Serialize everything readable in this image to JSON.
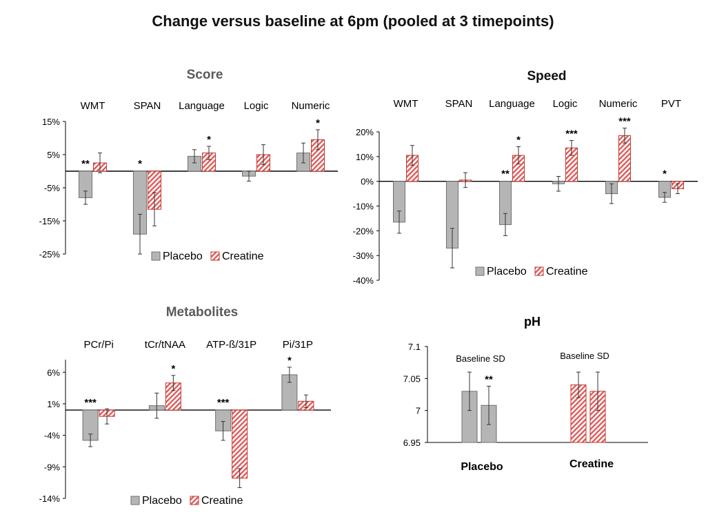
{
  "page_title": "Change versus baseline at 6pm  (pooled at 3 timepoints)",
  "colors": {
    "placebo_fill": "#b5b5b5",
    "placebo_stroke": "#6f6f6f",
    "creatine_stroke": "#c0392b",
    "creatine_hatch": "#e05a5a",
    "axis": "#000000",
    "error_bar": "#333333"
  },
  "chart_data": [
    {
      "type": "bar",
      "title": "Score",
      "categories": [
        "WMT",
        "SPAN",
        "Language",
        "Logic",
        "Numeric"
      ],
      "y_tick_labels": [
        "15%",
        "5%",
        "-5%",
        "-15%",
        "-25%"
      ],
      "ylim": [
        -25,
        15
      ],
      "series": [
        {
          "name": "Placebo",
          "values": [
            -8,
            -19,
            4.5,
            -1.5,
            5.5
          ],
          "errors": [
            2,
            6,
            2,
            1.5,
            3
          ]
        },
        {
          "name": "Creatine",
          "values": [
            2.5,
            -11.5,
            5.5,
            5,
            9.5
          ],
          "errors": [
            3,
            5,
            2,
            3,
            3
          ]
        }
      ],
      "significance": [
        {
          "series": 0,
          "category": 0,
          "label": "**"
        },
        {
          "series": 0,
          "category": 1,
          "label": "*"
        },
        {
          "series": 1,
          "category": 2,
          "label": "*"
        },
        {
          "series": 1,
          "category": 4,
          "label": "*"
        }
      ],
      "legend": [
        "Placebo",
        "Creatine"
      ],
      "legend_position": "bottom"
    },
    {
      "type": "bar",
      "title": "Speed",
      "categories": [
        "WMT",
        "SPAN",
        "Language",
        "Logic",
        "Numeric",
        "PVT"
      ],
      "y_tick_labels": [
        "20%",
        "10%",
        "0%",
        "-10%",
        "-20%",
        "-30%",
        "-40%"
      ],
      "ylim": [
        -40,
        20
      ],
      "series": [
        {
          "name": "Placebo",
          "values": [
            -16.5,
            -27,
            -17.5,
            -1,
            -5,
            -6.5
          ],
          "errors": [
            4.5,
            8,
            4.5,
            3,
            4,
            2
          ]
        },
        {
          "name": "Creatine",
          "values": [
            10.5,
            0.5,
            10.5,
            13.5,
            18.5,
            -3
          ],
          "errors": [
            4,
            3,
            3.5,
            3,
            3,
            2
          ]
        }
      ],
      "significance": [
        {
          "series": 1,
          "category": 2,
          "label": "*"
        },
        {
          "series": 1,
          "category": 3,
          "label": "***"
        },
        {
          "series": 1,
          "category": 4,
          "label": "***"
        },
        {
          "series": 0,
          "category": 2,
          "label": "**"
        },
        {
          "series": 0,
          "category": 5,
          "label": "*"
        }
      ],
      "legend": [
        "Placebo",
        "Creatine"
      ],
      "legend_position": "bottom"
    },
    {
      "type": "bar",
      "title": "Metabolites",
      "categories": [
        "PCr/Pi",
        "tCr/tNAA",
        "ATP-ß/31P",
        "Pi/31P"
      ],
      "y_tick_labels": [
        "6%",
        "1%",
        "-4%",
        "-9%",
        "-14%"
      ],
      "ylim": [
        -14,
        8
      ],
      "series": [
        {
          "name": "Placebo",
          "values": [
            -4.8,
            0.7,
            -3.3,
            5.6
          ],
          "errors": [
            1,
            2,
            1.5,
            1.2
          ]
        },
        {
          "name": "Creatine",
          "values": [
            -1,
            4.3,
            -10.8,
            1.4
          ],
          "errors": [
            1.2,
            1.2,
            1.5,
            1
          ]
        }
      ],
      "significance": [
        {
          "series": 0,
          "category": 0,
          "label": "***"
        },
        {
          "series": 1,
          "category": 1,
          "label": "*"
        },
        {
          "series": 0,
          "category": 2,
          "label": "***"
        },
        {
          "series": 0,
          "category": 3,
          "label": "*"
        }
      ],
      "legend": [
        "Placebo",
        "Creatine"
      ],
      "legend_position": "bottom"
    },
    {
      "type": "bar",
      "title": "pH",
      "groups": [
        "Placebo",
        "Creatine"
      ],
      "group_annotation": "Baseline SD",
      "y_tick_labels": [
        "7.1",
        "7.05",
        "7",
        "6.95"
      ],
      "ylim": [
        6.95,
        7.1
      ],
      "bars": [
        {
          "group": 0,
          "series": "Placebo",
          "value": 7.03,
          "error": 0.03
        },
        {
          "group": 0,
          "series": "Placebo",
          "value": 7.008,
          "error": 0.03
        },
        {
          "group": 1,
          "series": "Creatine",
          "value": 7.04,
          "error": 0.02
        },
        {
          "group": 1,
          "series": "Creatine",
          "value": 7.03,
          "error": 0.03
        }
      ],
      "significance": [
        {
          "bar": 1,
          "label": "**"
        }
      ]
    }
  ]
}
